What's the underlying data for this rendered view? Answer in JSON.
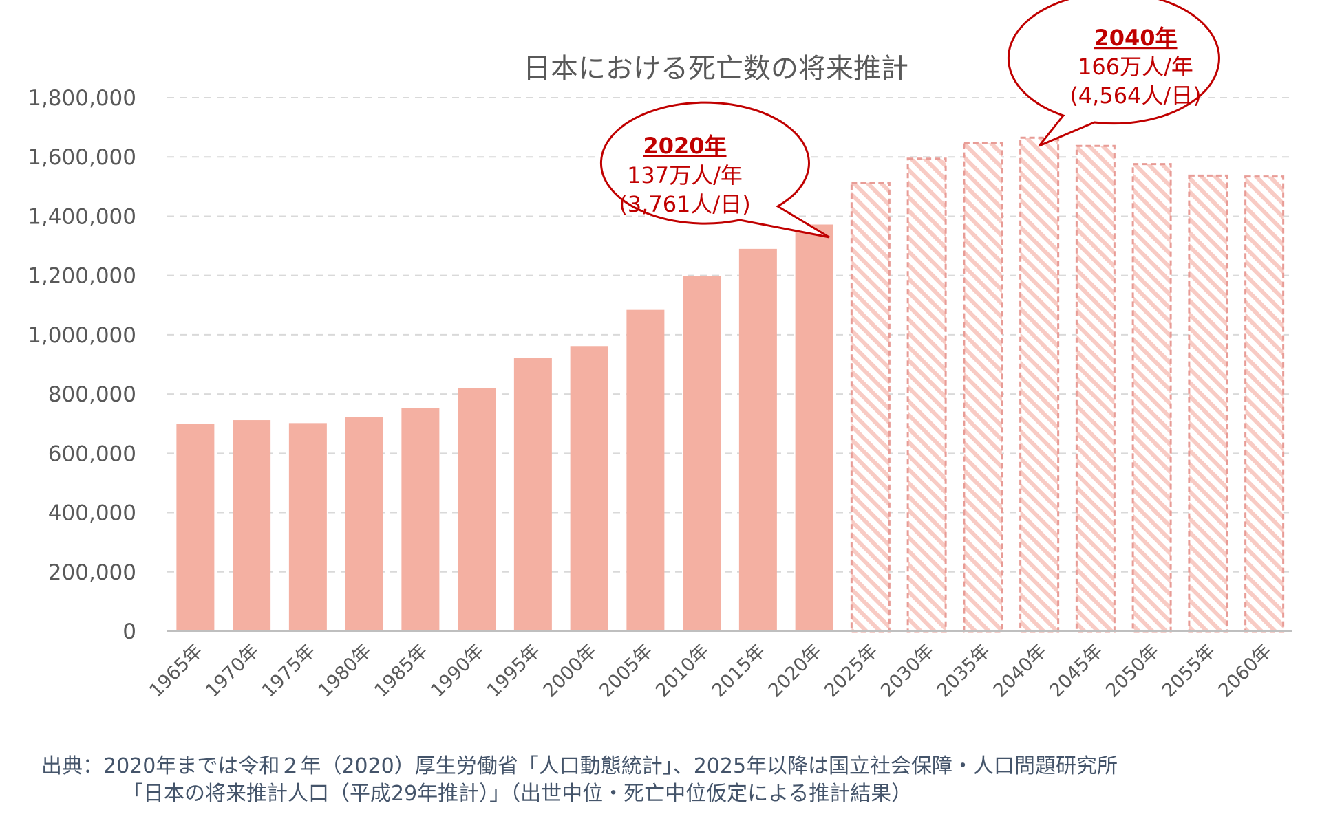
{
  "chart_data": {
    "type": "bar",
    "title": "日本における死亡数の将来推計",
    "categories": [
      "1965年",
      "1970年",
      "1975年",
      "1980年",
      "1985年",
      "1990年",
      "1995年",
      "2000年",
      "2005年",
      "2010年",
      "2015年",
      "2020年",
      "2025年",
      "2030年",
      "2035年",
      "2040年",
      "2045年",
      "2050年",
      "2055年",
      "2060年"
    ],
    "values": [
      700000,
      712000,
      702000,
      722000,
      752000,
      820000,
      922000,
      962000,
      1084000,
      1197000,
      1290000,
      1372000,
      1513000,
      1594000,
      1646000,
      1665000,
      1637000,
      1576000,
      1537000,
      1534000
    ],
    "projected_from_index": 12,
    "ylim": [
      0,
      1800000
    ],
    "yticks": [
      0,
      200000,
      400000,
      600000,
      800000,
      1000000,
      1200000,
      1400000,
      1600000,
      1800000
    ],
    "ytick_labels": [
      "0",
      "200,000",
      "400,000",
      "600,000",
      "800,000",
      "1,000,000",
      "1,200,000",
      "1,400,000",
      "1,600,000",
      "1,800,000"
    ],
    "grid": true,
    "colors": {
      "actual": "#f4b0a2",
      "projected_stroke": "#e89c96",
      "projected_hatch": "#f8cbc4",
      "grid": "#d9d9d9",
      "callout": "#c00000"
    },
    "annotations": [
      {
        "category": "2020年",
        "label": "2020年",
        "line1": "137万人/年",
        "line2": "(3,761人/日)"
      },
      {
        "category": "2040年",
        "label": "2040年",
        "line1": "166万人/年",
        "line2": "(4,564人/日)"
      }
    ]
  },
  "source": {
    "line1": "出典：2020年までは令和２年（2020）厚生労働省「人口動態統計」、2025年以降は国立社会保障・人口問題研究所",
    "line2": "「日本の将来推計人口（平成29年推計）」（出世中位・死亡中位仮定による推計結果）"
  }
}
